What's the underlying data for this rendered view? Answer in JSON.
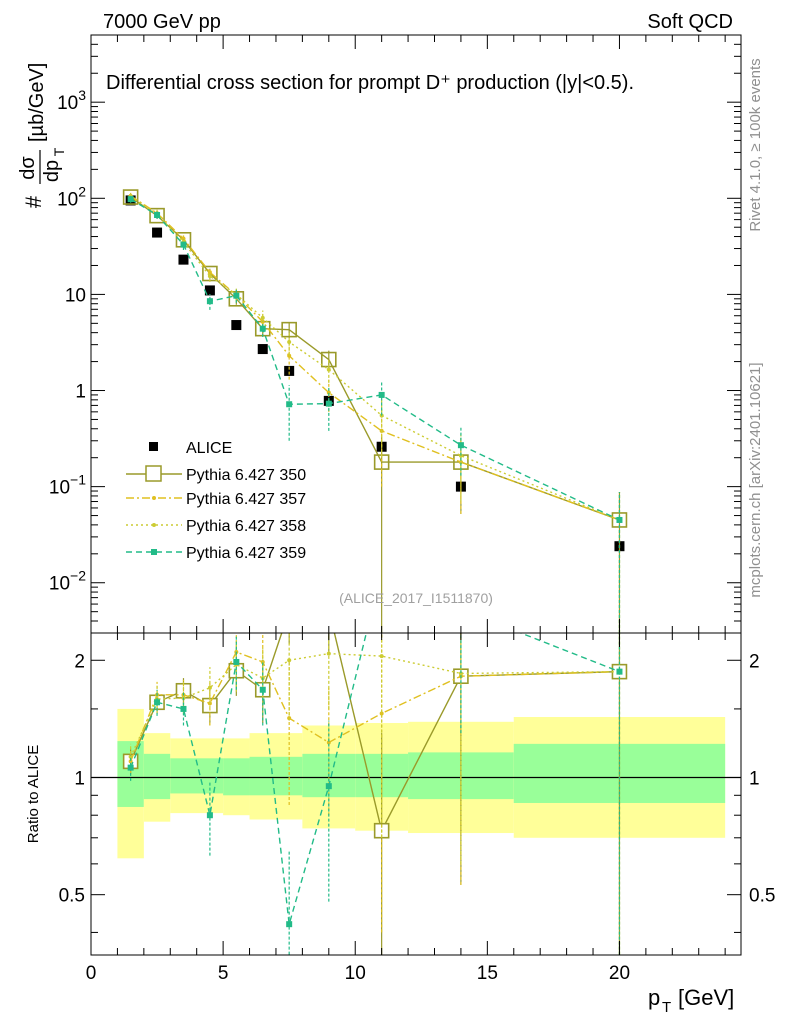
{
  "header": {
    "left": "7000 GeV pp",
    "right": "Soft QCD"
  },
  "side_labels": {
    "rivet": "Rivet 4.1.0, ≥ 100k events",
    "mcplots": "mcplots.cern.ch [arXiv:2401.10621]"
  },
  "colors": {
    "alice": "#000000",
    "p350": "#9a9a2a",
    "p357": "#e0c020",
    "p358": "#cccc33",
    "p359": "#22bb88",
    "band_yellow": "#ffff99",
    "band_green": "#99ff99"
  },
  "chart_data": [
    {
      "type": "line",
      "title": "Differential cross section for prompt D⁺ production (|y|<0.5).",
      "ylabel": "#dσ/dp_T [µb/GeV]",
      "ylabel_parts": {
        "prefix": "#",
        "num": "dσ",
        "den": "dp",
        "den_sub": "T",
        "unit": "[µb/GeV]"
      },
      "yscale": "log",
      "ylim": [
        0.003,
        5000
      ],
      "xlim": [
        0,
        24.6
      ],
      "y_ticks": [
        {
          "v": 0.01,
          "base": "10",
          "exp": "−2"
        },
        {
          "v": 0.1,
          "base": "10",
          "exp": "−1"
        },
        {
          "v": 1,
          "label": "1"
        },
        {
          "v": 10,
          "label": "10"
        },
        {
          "v": 100,
          "base": "10",
          "exp": "2"
        },
        {
          "v": 1000,
          "base": "10",
          "exp": "3"
        }
      ],
      "watermark": "(ALICE_2017_I1511870)",
      "legend_position": "middle-left",
      "series": [
        {
          "key": "alice",
          "name": "ALICE",
          "style": "data",
          "points": [
            {
              "x": 1.5,
              "y": 95,
              "xlo": 1,
              "xhi": 2
            },
            {
              "x": 2.5,
              "y": 44,
              "xlo": 2,
              "xhi": 3
            },
            {
              "x": 3.5,
              "y": 23,
              "xlo": 3,
              "xhi": 4
            },
            {
              "x": 4.5,
              "y": 11,
              "xlo": 4,
              "xhi": 5
            },
            {
              "x": 5.5,
              "y": 4.8,
              "xlo": 5,
              "xhi": 6
            },
            {
              "x": 6.5,
              "y": 2.7,
              "xlo": 6,
              "xhi": 7
            },
            {
              "x": 7.5,
              "y": 1.6,
              "xlo": 7,
              "xhi": 8
            },
            {
              "x": 9,
              "y": 0.78,
              "xlo": 8,
              "xhi": 10
            },
            {
              "x": 11,
              "y": 0.26,
              "xlo": 10,
              "xhi": 12
            },
            {
              "x": 14,
              "y": 0.1,
              "xlo": 12,
              "xhi": 16
            },
            {
              "x": 20,
              "y": 0.024,
              "xlo": 16,
              "xhi": 24
            }
          ]
        },
        {
          "key": "p350",
          "name": "Pythia 6.427 350",
          "style": "solid",
          "marker": "open-square",
          "points": [
            {
              "x": 1.5,
              "y": 103,
              "lo": 95,
              "hi": 111
            },
            {
              "x": 2.5,
              "y": 66,
              "lo": 61,
              "hi": 71
            },
            {
              "x": 3.5,
              "y": 37,
              "lo": 33,
              "hi": 41
            },
            {
              "x": 4.5,
              "y": 16.5,
              "lo": 14.5,
              "hi": 18.5
            },
            {
              "x": 5.5,
              "y": 9,
              "lo": 7.8,
              "hi": 10.2
            },
            {
              "x": 6.5,
              "y": 4.4,
              "lo": 3.7,
              "hi": 5.1
            },
            {
              "x": 7.5,
              "y": 4.3,
              "lo": 3.5,
              "hi": 5.1
            },
            {
              "x": 9,
              "y": 2.1,
              "lo": 1.6,
              "hi": 2.6
            },
            {
              "x": 11,
              "y": 0.18,
              "lo": 0.003,
              "hi": 0.33
            },
            {
              "x": 14,
              "y": 0.18,
              "lo": 0.052,
              "hi": 0.32
            },
            {
              "x": 20,
              "y": 0.045,
              "lo": 0.003,
              "hi": 0.088
            }
          ]
        },
        {
          "key": "p357",
          "name": "Pythia 6.427 357",
          "style": "dashdot",
          "marker": "small-dot",
          "points": [
            {
              "x": 1.5,
              "y": 106,
              "lo": 98,
              "hi": 114
            },
            {
              "x": 2.5,
              "y": 70,
              "lo": 64,
              "hi": 76
            },
            {
              "x": 3.5,
              "y": 38,
              "lo": 34,
              "hi": 42
            },
            {
              "x": 4.5,
              "y": 17,
              "lo": 15,
              "hi": 19
            },
            {
              "x": 5.5,
              "y": 9.8,
              "lo": 8.4,
              "hi": 11.2
            },
            {
              "x": 6.5,
              "y": 5.2,
              "lo": 4.2,
              "hi": 6.2
            },
            {
              "x": 7.5,
              "y": 2.3,
              "lo": 1.3,
              "hi": 3.3
            },
            {
              "x": 9,
              "y": 0.95,
              "lo": 0.6,
              "hi": 1.3
            },
            {
              "x": 11,
              "y": 0.38,
              "lo": 0.1,
              "hi": 0.66
            },
            {
              "x": 14,
              "y": 0.18,
              "lo": 0.052,
              "hi": 0.32
            },
            {
              "x": 20,
              "y": 0.045,
              "lo": 0.003,
              "hi": 0.088
            }
          ]
        },
        {
          "key": "p358",
          "name": "Pythia 6.427 358",
          "style": "dotted",
          "marker": "small-dot",
          "points": [
            {
              "x": 1.5,
              "y": 104,
              "lo": 96,
              "hi": 112
            },
            {
              "x": 2.5,
              "y": 68,
              "lo": 62,
              "hi": 74
            },
            {
              "x": 3.5,
              "y": 35,
              "lo": 31,
              "hi": 39
            },
            {
              "x": 4.5,
              "y": 15.5,
              "lo": 13.5,
              "hi": 17.5
            },
            {
              "x": 5.5,
              "y": 10,
              "lo": 8.5,
              "hi": 11.5
            },
            {
              "x": 6.5,
              "y": 5.7,
              "lo": 4.6,
              "hi": 6.8
            },
            {
              "x": 7.5,
              "y": 3.2,
              "lo": 2.3,
              "hi": 4.1
            },
            {
              "x": 9,
              "y": 1.65,
              "lo": 1.2,
              "hi": 2.1
            },
            {
              "x": 11,
              "y": 0.55,
              "lo": 0.2,
              "hi": 0.9
            },
            {
              "x": 14,
              "y": 0.21,
              "lo": 0.07,
              "hi": 0.35
            },
            {
              "x": 20,
              "y": 0.045,
              "lo": 0.003,
              "hi": 0.088
            }
          ]
        },
        {
          "key": "p359",
          "name": "Pythia 6.427 359",
          "style": "dashed",
          "marker": "filled-square",
          "points": [
            {
              "x": 1.5,
              "y": 98,
              "lo": 90,
              "hi": 106
            },
            {
              "x": 2.5,
              "y": 67,
              "lo": 61,
              "hi": 73
            },
            {
              "x": 3.5,
              "y": 33,
              "lo": 29,
              "hi": 37
            },
            {
              "x": 4.5,
              "y": 8.5,
              "lo": 6.9,
              "hi": 10.1
            },
            {
              "x": 5.5,
              "y": 9.7,
              "lo": 8.2,
              "hi": 11.2
            },
            {
              "x": 6.5,
              "y": 4.4,
              "lo": 3.6,
              "hi": 5.2
            },
            {
              "x": 7.5,
              "y": 0.72,
              "lo": 0.3,
              "hi": 1.14
            },
            {
              "x": 9,
              "y": 0.73,
              "lo": 0.38,
              "hi": 1.08
            },
            {
              "x": 11,
              "y": 0.9,
              "lo": 0.55,
              "hi": 1.25
            },
            {
              "x": 14,
              "y": 0.27,
              "lo": 0.13,
              "hi": 0.41
            },
            {
              "x": 20,
              "y": 0.045,
              "lo": 0.003,
              "hi": 0.088
            }
          ]
        }
      ]
    },
    {
      "type": "line",
      "ylabel": "Ratio to ALICE",
      "xlabel": "p_T [GeV]",
      "xlabel_parts": {
        "main": "p",
        "sub": "T",
        "unit": "[GeV]"
      },
      "yscale": "log",
      "ylim": [
        0.35,
        2.35
      ],
      "xlim": [
        0,
        24.6
      ],
      "y_ticks": [
        {
          "v": 0.5,
          "label": "0.5"
        },
        {
          "v": 1,
          "label": "1"
        },
        {
          "v": 2,
          "label": "2"
        }
      ],
      "x_ticks": [
        {
          "v": 0,
          "label": "0"
        },
        {
          "v": 5,
          "label": "5"
        },
        {
          "v": 10,
          "label": "10"
        },
        {
          "v": 15,
          "label": "15"
        },
        {
          "v": 20,
          "label": "20"
        }
      ],
      "bands": [
        {
          "xlo": 1,
          "xhi": 2,
          "stat_lo": 0.84,
          "stat_hi": 1.24,
          "tot_lo": 0.62,
          "tot_hi": 1.5
        },
        {
          "xlo": 2,
          "xhi": 3,
          "stat_lo": 0.88,
          "stat_hi": 1.15,
          "tot_lo": 0.77,
          "tot_hi": 1.3
        },
        {
          "xlo": 3,
          "xhi": 5,
          "stat_lo": 0.91,
          "stat_hi": 1.12,
          "tot_lo": 0.81,
          "tot_hi": 1.26
        },
        {
          "xlo": 5,
          "xhi": 6,
          "stat_lo": 0.9,
          "stat_hi": 1.12,
          "tot_lo": 0.8,
          "tot_hi": 1.26
        },
        {
          "xlo": 6,
          "xhi": 8,
          "stat_lo": 0.9,
          "stat_hi": 1.13,
          "tot_lo": 0.78,
          "tot_hi": 1.3
        },
        {
          "xlo": 8,
          "xhi": 10,
          "stat_lo": 0.89,
          "stat_hi": 1.15,
          "tot_lo": 0.74,
          "tot_hi": 1.36
        },
        {
          "xlo": 10,
          "xhi": 12,
          "stat_lo": 0.89,
          "stat_hi": 1.15,
          "tot_lo": 0.73,
          "tot_hi": 1.38
        },
        {
          "xlo": 12,
          "xhi": 16,
          "stat_lo": 0.88,
          "stat_hi": 1.16,
          "tot_lo": 0.72,
          "tot_hi": 1.39
        },
        {
          "xlo": 16,
          "xhi": 24,
          "stat_lo": 0.86,
          "stat_hi": 1.22,
          "tot_lo": 0.7,
          "tot_hi": 1.43
        }
      ],
      "series": [
        {
          "key": "p350",
          "name": "Pythia 6.427 350",
          "points": [
            {
              "x": 1.5,
              "y": 1.1,
              "lo": 1.02,
              "hi": 1.18
            },
            {
              "x": 2.5,
              "y": 1.56,
              "lo": 1.46,
              "hi": 1.66
            },
            {
              "x": 3.5,
              "y": 1.67,
              "lo": 1.55,
              "hi": 1.8
            },
            {
              "x": 4.5,
              "y": 1.53,
              "lo": 1.36,
              "hi": 1.72
            },
            {
              "x": 5.5,
              "y": 1.88,
              "lo": 1.62,
              "hi": 2.15
            },
            {
              "x": 6.5,
              "y": 1.68,
              "lo": 1.38,
              "hi": 2.0
            },
            {
              "x": 7.5,
              "y": 2.68,
              "lo": 2.2,
              "hi": 3.2
            },
            {
              "x": 9,
              "y": 2.7,
              "lo": 2.1,
              "hi": 3.3
            },
            {
              "x": 11,
              "y": 0.73,
              "lo": 0.2,
              "hi": 1.3
            },
            {
              "x": 14,
              "y": 1.82,
              "lo": 0.53,
              "hi": 3.2
            },
            {
              "x": 20,
              "y": 1.87,
              "lo": 0.2,
              "hi": 3.6
            }
          ]
        },
        {
          "key": "p357",
          "name": "Pythia 6.427 357",
          "points": [
            {
              "x": 1.5,
              "y": 1.1,
              "lo": 1.02,
              "hi": 1.19
            },
            {
              "x": 2.5,
              "y": 1.63,
              "lo": 1.5,
              "hi": 1.76
            },
            {
              "x": 3.5,
              "y": 1.63,
              "lo": 1.48,
              "hi": 1.78
            },
            {
              "x": 4.5,
              "y": 1.55,
              "lo": 1.36,
              "hi": 1.75
            },
            {
              "x": 5.5,
              "y": 2.1,
              "lo": 1.8,
              "hi": 2.4
            },
            {
              "x": 6.5,
              "y": 1.98,
              "lo": 1.6,
              "hi": 2.4
            },
            {
              "x": 7.5,
              "y": 1.42,
              "lo": 0.85,
              "hi": 2.0
            },
            {
              "x": 9,
              "y": 1.23,
              "lo": 0.8,
              "hi": 1.7
            },
            {
              "x": 11,
              "y": 1.46,
              "lo": 0.4,
              "hi": 2.55
            },
            {
              "x": 14,
              "y": 1.82,
              "lo": 0.53,
              "hi": 3.2
            },
            {
              "x": 20,
              "y": 1.87,
              "lo": 0.2,
              "hi": 3.6
            }
          ]
        },
        {
          "key": "p358",
          "name": "Pythia 6.427 358",
          "points": [
            {
              "x": 1.5,
              "y": 1.13,
              "lo": 1.05,
              "hi": 1.22
            },
            {
              "x": 2.5,
              "y": 1.59,
              "lo": 1.46,
              "hi": 1.72
            },
            {
              "x": 3.5,
              "y": 1.6,
              "lo": 1.45,
              "hi": 1.76
            },
            {
              "x": 4.5,
              "y": 1.7,
              "lo": 1.5,
              "hi": 1.92
            },
            {
              "x": 5.5,
              "y": 1.95,
              "lo": 1.66,
              "hi": 2.25
            },
            {
              "x": 6.5,
              "y": 1.8,
              "lo": 1.45,
              "hi": 2.15
            },
            {
              "x": 7.5,
              "y": 2.0,
              "lo": 1.4,
              "hi": 2.6
            },
            {
              "x": 9,
              "y": 2.08,
              "lo": 1.5,
              "hi": 2.7
            },
            {
              "x": 11,
              "y": 2.05,
              "lo": 0.7,
              "hi": 3.4
            },
            {
              "x": 14,
              "y": 1.85,
              "lo": 0.6,
              "hi": 3.1
            },
            {
              "x": 20,
              "y": 1.87,
              "lo": 0.2,
              "hi": 3.6
            }
          ]
        },
        {
          "key": "p359",
          "name": "Pythia 6.427 359",
          "points": [
            {
              "x": 1.5,
              "y": 1.06,
              "lo": 0.98,
              "hi": 1.14
            },
            {
              "x": 2.5,
              "y": 1.56,
              "lo": 1.44,
              "hi": 1.68
            },
            {
              "x": 3.5,
              "y": 1.5,
              "lo": 1.36,
              "hi": 1.65
            },
            {
              "x": 4.5,
              "y": 0.8,
              "lo": 0.63,
              "hi": 0.97
            },
            {
              "x": 5.5,
              "y": 1.98,
              "lo": 1.68,
              "hi": 2.3
            },
            {
              "x": 6.5,
              "y": 1.68,
              "lo": 1.36,
              "hi": 2.0
            },
            {
              "x": 7.5,
              "y": 0.42,
              "lo": 0.2,
              "hi": 0.65
            },
            {
              "x": 9,
              "y": 0.95,
              "lo": 0.48,
              "hi": 1.4
            },
            {
              "x": 11,
              "y": 3.4,
              "lo": 2.5,
              "hi": 4.3
            },
            {
              "x": 14,
              "y": 2.7,
              "lo": 1.3,
              "hi": 4.1
            },
            {
              "x": 20,
              "y": 1.87,
              "lo": 0.2,
              "hi": 3.6
            }
          ]
        }
      ]
    }
  ]
}
